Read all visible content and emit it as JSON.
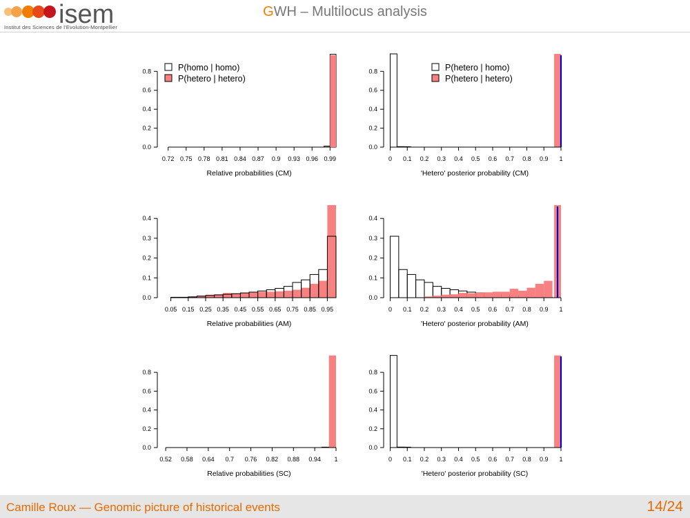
{
  "header": {
    "logo_text": "isem",
    "logo_subtitle": "Institut des Sciences de l'Evolution-Montpellier",
    "title_accent": "G",
    "title_rest": "WH – Multilocus analysis"
  },
  "footer": {
    "author": "Camille Roux — Genomic picture of historical events",
    "page": "14/24"
  },
  "colors": {
    "white_bar_fill": "#ffffff",
    "red_bar_fill": "#f78080",
    "bar_outline": "#000000",
    "marker_line": "#0000cc",
    "accent": "#e56a00"
  },
  "chart_data": [
    {
      "type": "bar",
      "xlabel": "Relative probabilities (CM)",
      "ylabel": "",
      "ylim": [
        0,
        0.97
      ],
      "yticks": [
        0.0,
        0.2,
        0.4,
        0.6,
        0.8
      ],
      "ytick_labels": [
        "0.0",
        "0.2",
        "0.4",
        "0.6",
        "0.8"
      ],
      "xlim": [
        0.71,
        1.0
      ],
      "xtick_values": [
        0.72,
        0.75,
        0.78,
        0.81,
        0.84,
        0.87,
        0.9,
        0.93,
        0.96,
        0.99
      ],
      "xtick_labels": [
        "0.72",
        "0.75",
        "0.78",
        "0.81",
        "0.84",
        "0.87",
        "0.9",
        "0.93",
        "0.96",
        "0.99"
      ],
      "legend": {
        "placement": "top-left",
        "entries": [
          "P(homo | homo)",
          "P(hetero | hetero)"
        ]
      },
      "series": [
        {
          "name": "P(homo | homo)",
          "fill": "white",
          "bins": [
            [
              0.98,
              0.99,
              0.01
            ],
            [
              0.99,
              1.0,
              0.98
            ]
          ]
        },
        {
          "name": "P(hetero | hetero)",
          "fill": "red",
          "bins": [
            [
              0.99,
              1.0,
              0.97
            ]
          ],
          "clip_top": true
        }
      ],
      "axis_left_top": 0.8
    },
    {
      "type": "bar",
      "xlabel": "'Hetero' posterior probability (CM)",
      "ylabel": "",
      "ylim": [
        0,
        0.97
      ],
      "yticks": [
        0.0,
        0.2,
        0.4,
        0.6,
        0.8
      ],
      "ytick_labels": [
        "0.0",
        "0.2",
        "0.4",
        "0.6",
        "0.8"
      ],
      "xlim": [
        -0.01,
        1.0
      ],
      "xtick_values": [
        0,
        0.1,
        0.2,
        0.3,
        0.4,
        0.5,
        0.6,
        0.7,
        0.8,
        0.9,
        1
      ],
      "xtick_labels": [
        "0",
        "0.1",
        "0.2",
        "0.3",
        "0.4",
        "0.5",
        "0.6",
        "0.7",
        "0.8",
        "0.9",
        "1"
      ],
      "legend": {
        "placement": "top-center",
        "entries": [
          "P(hetero | homo)",
          "P(hetero | hetero)"
        ]
      },
      "series": [
        {
          "name": "P(hetero | homo)",
          "fill": "white",
          "bins": [
            [
              0.0,
              0.04,
              0.99
            ],
            [
              0.04,
              0.08,
              0.005
            ],
            [
              0.08,
              0.12,
              0.003
            ]
          ]
        },
        {
          "name": "P(hetero | hetero)",
          "fill": "red",
          "bins": [
            [
              0.96,
              1.0,
              0.99
            ]
          ],
          "clip_top": true
        }
      ],
      "marker_x": 1.0,
      "axis_left_top": 0.8
    },
    {
      "type": "bar",
      "xlabel": "Relative probabilities (AM)",
      "ylabel": "",
      "ylim": [
        0,
        0.46
      ],
      "yticks": [
        0.0,
        0.1,
        0.2,
        0.3,
        0.4
      ],
      "ytick_labels": [
        "0.0",
        "0.1",
        "0.2",
        "0.3",
        "0.4"
      ],
      "xlim": [
        0.0,
        1.0
      ],
      "xtick_values": [
        0.05,
        0.15,
        0.25,
        0.35,
        0.45,
        0.55,
        0.65,
        0.75,
        0.85,
        0.95
      ],
      "xtick_labels": [
        "0.05",
        "0.15",
        "0.25",
        "0.35",
        "0.45",
        "0.55",
        "0.65",
        "0.75",
        "0.85",
        "0.95"
      ],
      "series": [
        {
          "name": "",
          "fill": "red",
          "clip_top": true,
          "bins": [
            [
              0.05,
              0.1,
              0.002
            ],
            [
              0.1,
              0.15,
              0.003
            ],
            [
              0.15,
              0.2,
              0.006
            ],
            [
              0.2,
              0.25,
              0.01
            ],
            [
              0.25,
              0.3,
              0.015
            ],
            [
              0.3,
              0.35,
              0.017
            ],
            [
              0.35,
              0.4,
              0.024
            ],
            [
              0.4,
              0.45,
              0.022
            ],
            [
              0.45,
              0.5,
              0.025
            ],
            [
              0.5,
              0.55,
              0.027
            ],
            [
              0.55,
              0.6,
              0.03
            ],
            [
              0.6,
              0.65,
              0.03
            ],
            [
              0.65,
              0.7,
              0.032
            ],
            [
              0.7,
              0.75,
              0.035
            ],
            [
              0.75,
              0.8,
              0.04
            ],
            [
              0.8,
              0.85,
              0.05
            ],
            [
              0.85,
              0.9,
              0.07
            ],
            [
              0.9,
              0.95,
              0.085
            ],
            [
              0.95,
              1.0,
              0.47
            ]
          ]
        },
        {
          "name": "",
          "fill": "white",
          "bins": [
            [
              0.05,
              0.1,
              0.001
            ],
            [
              0.1,
              0.15,
              0.002
            ],
            [
              0.15,
              0.2,
              0.004
            ],
            [
              0.2,
              0.25,
              0.008
            ],
            [
              0.25,
              0.3,
              0.011
            ],
            [
              0.3,
              0.35,
              0.014
            ],
            [
              0.35,
              0.4,
              0.017
            ],
            [
              0.4,
              0.45,
              0.02
            ],
            [
              0.45,
              0.5,
              0.024
            ],
            [
              0.5,
              0.55,
              0.028
            ],
            [
              0.55,
              0.6,
              0.034
            ],
            [
              0.6,
              0.65,
              0.04
            ],
            [
              0.65,
              0.7,
              0.047
            ],
            [
              0.7,
              0.75,
              0.057
            ],
            [
              0.75,
              0.8,
              0.077
            ],
            [
              0.8,
              0.85,
              0.09
            ],
            [
              0.85,
              0.9,
              0.117
            ],
            [
              0.9,
              0.95,
              0.142
            ],
            [
              0.95,
              1.0,
              0.31
            ]
          ]
        }
      ],
      "axis_left_top": 0.4
    },
    {
      "type": "bar",
      "xlabel": "'Hetero' posterior probability (AM)",
      "ylabel": "",
      "ylim": [
        0,
        0.46
      ],
      "yticks": [
        0.0,
        0.1,
        0.2,
        0.3,
        0.4
      ],
      "ytick_labels": [
        "0.0",
        "0.1",
        "0.2",
        "0.3",
        "0.4"
      ],
      "xlim": [
        -0.01,
        1.0
      ],
      "xtick_values": [
        0,
        0.1,
        0.2,
        0.3,
        0.4,
        0.5,
        0.6,
        0.7,
        0.8,
        0.9,
        1
      ],
      "xtick_labels": [
        "0",
        "0.1",
        "0.2",
        "0.3",
        "0.4",
        "0.5",
        "0.6",
        "0.7",
        "0.8",
        "0.9",
        "1"
      ],
      "series": [
        {
          "name": "",
          "fill": "white",
          "bins": [
            [
              0.0,
              0.05,
              0.31
            ],
            [
              0.05,
              0.1,
              0.142
            ],
            [
              0.1,
              0.15,
              0.117
            ],
            [
              0.15,
              0.2,
              0.09
            ],
            [
              0.2,
              0.25,
              0.077
            ],
            [
              0.25,
              0.3,
              0.057
            ],
            [
              0.3,
              0.35,
              0.047
            ],
            [
              0.35,
              0.4,
              0.04
            ],
            [
              0.4,
              0.45,
              0.034
            ],
            [
              0.45,
              0.5,
              0.028
            ],
            [
              0.5,
              0.55,
              0.024
            ],
            [
              0.55,
              0.6,
              0.02
            ],
            [
              0.6,
              0.65,
              0.017
            ],
            [
              0.65,
              0.7,
              0.014
            ],
            [
              0.7,
              0.75,
              0.011
            ],
            [
              0.75,
              0.8,
              0.008
            ],
            [
              0.8,
              0.85,
              0.004
            ],
            [
              0.85,
              0.9,
              0.002
            ],
            [
              0.9,
              0.95,
              0.001
            ]
          ]
        },
        {
          "name": "",
          "fill": "red",
          "clip_top": true,
          "bins": [
            [
              0.15,
              0.2,
              0.002
            ],
            [
              0.2,
              0.25,
              0.006
            ],
            [
              0.25,
              0.3,
              0.01
            ],
            [
              0.3,
              0.35,
              0.015
            ],
            [
              0.35,
              0.4,
              0.017
            ],
            [
              0.4,
              0.45,
              0.024
            ],
            [
              0.45,
              0.5,
              0.022
            ],
            [
              0.5,
              0.55,
              0.025
            ],
            [
              0.55,
              0.6,
              0.027
            ],
            [
              0.6,
              0.65,
              0.03
            ],
            [
              0.65,
              0.7,
              0.03
            ],
            [
              0.7,
              0.75,
              0.045
            ],
            [
              0.75,
              0.8,
              0.035
            ],
            [
              0.8,
              0.85,
              0.05
            ],
            [
              0.85,
              0.9,
              0.07
            ],
            [
              0.9,
              0.95,
              0.085
            ],
            [
              0.96,
              1.0,
              0.47
            ]
          ]
        }
      ],
      "marker_x": 0.98,
      "axis_left_top": 0.4
    },
    {
      "type": "bar",
      "xlabel": "Relative probabilities (SC)",
      "ylabel": "",
      "ylim": [
        0,
        0.97
      ],
      "yticks": [
        0.0,
        0.2,
        0.4,
        0.6,
        0.8
      ],
      "ytick_labels": [
        "0.0",
        "0.2",
        "0.4",
        "0.6",
        "0.8"
      ],
      "xlim": [
        0.51,
        1.0
      ],
      "xtick_values": [
        0.52,
        0.58,
        0.64,
        0.7,
        0.76,
        0.82,
        0.88,
        0.94,
        1.0
      ],
      "xtick_labels": [
        "0.52",
        "0.58",
        "0.64",
        "0.7",
        "0.76",
        "0.82",
        "0.88",
        "0.94",
        "1"
      ],
      "series": [
        {
          "name": "",
          "fill": "white",
          "bins": [
            [
              0.96,
              0.98,
              0.003
            ]
          ]
        },
        {
          "name": "",
          "fill": "red",
          "bins": [
            [
              0.98,
              1.0,
              0.98
            ]
          ]
        }
      ],
      "axis_left_top": 0.8
    },
    {
      "type": "bar",
      "xlabel": "'Hetero' posterior probability (SC)",
      "ylabel": "",
      "ylim": [
        0,
        0.97
      ],
      "yticks": [
        0.0,
        0.2,
        0.4,
        0.6,
        0.8
      ],
      "ytick_labels": [
        "0.0",
        "0.2",
        "0.4",
        "0.6",
        "0.8"
      ],
      "xlim": [
        -0.01,
        1.0
      ],
      "xtick_values": [
        0,
        0.1,
        0.2,
        0.3,
        0.4,
        0.5,
        0.6,
        0.7,
        0.8,
        0.9,
        1
      ],
      "xtick_labels": [
        "0",
        "0.1",
        "0.2",
        "0.3",
        "0.4",
        "0.5",
        "0.6",
        "0.7",
        "0.8",
        "0.9",
        "1"
      ],
      "series": [
        {
          "name": "",
          "fill": "white",
          "bins": [
            [
              0.0,
              0.04,
              0.98
            ],
            [
              0.04,
              0.08,
              0.005
            ],
            [
              0.08,
              0.12,
              0.003
            ]
          ]
        },
        {
          "name": "",
          "fill": "red",
          "bins": [
            [
              0.96,
              1.0,
              0.98
            ]
          ]
        }
      ],
      "marker_x": 1.0,
      "axis_left_top": 0.8
    }
  ]
}
